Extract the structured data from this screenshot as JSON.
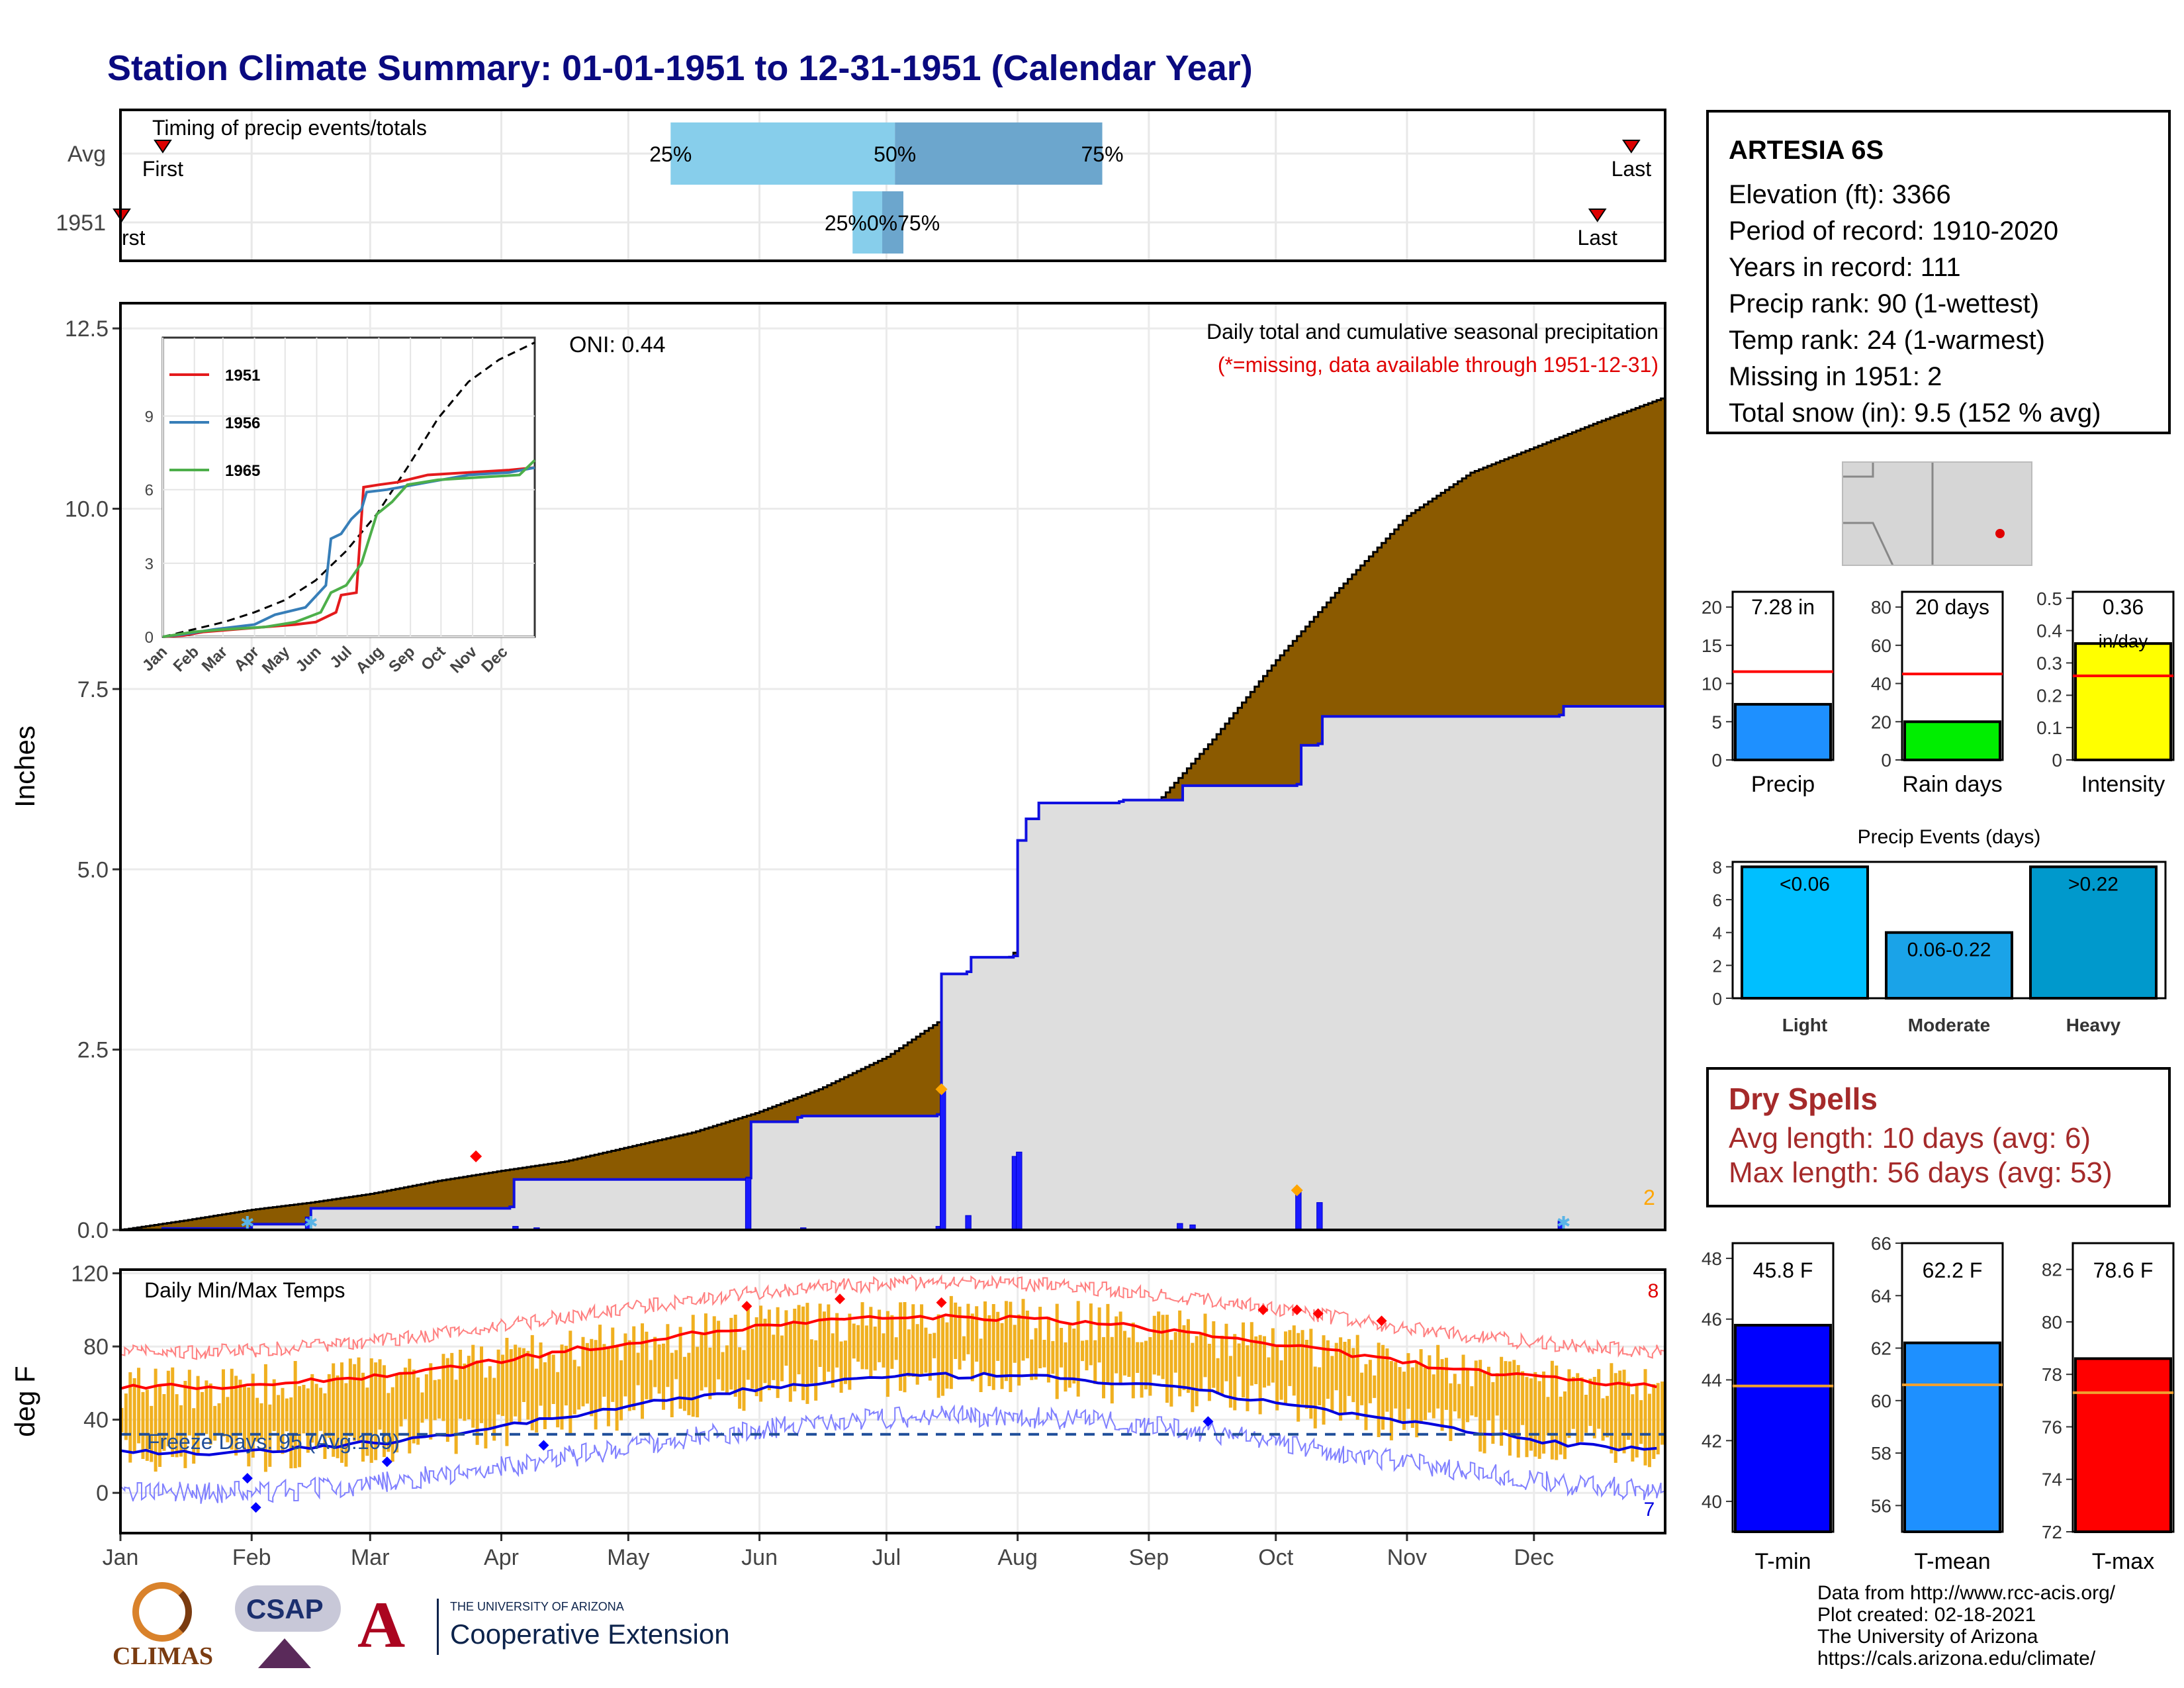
{
  "title": "Station Climate Summary: 01-01-1951 to 12-31-1951 (Calendar Year)",
  "station": {
    "name": "ARTESIA 6S",
    "lines": [
      "Elevation (ft): 3366",
      "Period of record: 1910-2020",
      "Years in record: 111",
      "Precip rank: 90 (1-wettest)",
      "Temp rank: 24 (1-warmest)",
      "Missing in 1951: 2",
      "Total snow (in): 9.5 (152 % avg)"
    ]
  },
  "timing": {
    "title": "Timing of precip events/totals",
    "rows": [
      "Avg",
      "1951"
    ],
    "first_label": "First",
    "first_label_clipped": "rst",
    "last_label": "Last",
    "avg": {
      "first_day": 10,
      "p25": 130,
      "p50": 183,
      "p75": 232,
      "last_day": 357
    },
    "y1951": {
      "first_day": -3,
      "p25": 173,
      "p50": 180,
      "p75": 185,
      "last_day": 349
    },
    "pct_labels": [
      "25%",
      "50%",
      "75%"
    ],
    "pct_labels_1951": "25%0%75%"
  },
  "precip_chart": {
    "ylabel": "Inches",
    "yticks": [
      0.0,
      2.5,
      5.0,
      7.5,
      10.0,
      12.5
    ],
    "ytick_labels": [
      "0.0",
      "2.5",
      "5.0",
      "7.5",
      "10.0",
      "12.5"
    ],
    "legend_title": "Daily total and cumulative seasonal precipitation",
    "legend_note": "(*=missing, data available through 1951-12-31)",
    "oni": "ONI: 0.44",
    "missing_count": "2",
    "avg_cumulative": [
      [
        0,
        0
      ],
      [
        15,
        0.13
      ],
      [
        31,
        0.28
      ],
      [
        45,
        0.38
      ],
      [
        59,
        0.5
      ],
      [
        75,
        0.68
      ],
      [
        90,
        0.82
      ],
      [
        105,
        0.95
      ],
      [
        120,
        1.15
      ],
      [
        135,
        1.35
      ],
      [
        150,
        1.62
      ],
      [
        165,
        1.95
      ],
      [
        181,
        2.4
      ],
      [
        196,
        3.0
      ],
      [
        212,
        3.9
      ],
      [
        227,
        4.85
      ],
      [
        243,
        5.8
      ],
      [
        258,
        6.8
      ],
      [
        273,
        7.9
      ],
      [
        288,
        8.9
      ],
      [
        304,
        9.9
      ],
      [
        319,
        10.5
      ],
      [
        334,
        10.85
      ],
      [
        349,
        11.2
      ],
      [
        365,
        11.55
      ]
    ],
    "y1951_cumulative": [
      [
        0,
        0
      ],
      [
        10,
        0.02
      ],
      [
        31,
        0.08
      ],
      [
        44,
        0.1
      ],
      [
        45,
        0.3
      ],
      [
        92,
        0.32
      ],
      [
        93,
        0.7
      ],
      [
        148,
        0.72
      ],
      [
        149,
        1.5
      ],
      [
        160,
        1.56
      ],
      [
        161,
        1.58
      ],
      [
        193,
        1.6
      ],
      [
        194,
        3.55
      ],
      [
        200,
        3.58
      ],
      [
        201,
        3.78
      ],
      [
        211,
        3.8
      ],
      [
        212,
        5.4
      ],
      [
        214,
        5.7
      ],
      [
        217,
        5.92
      ],
      [
        236,
        5.94
      ],
      [
        237,
        5.96
      ],
      [
        250,
        5.96
      ],
      [
        251,
        6.16
      ],
      [
        278,
        6.18
      ],
      [
        279,
        6.72
      ],
      [
        283,
        6.74
      ],
      [
        284,
        7.12
      ],
      [
        340,
        7.14
      ],
      [
        341,
        7.26
      ],
      [
        365,
        7.26
      ]
    ],
    "daily_bars": [
      [
        44,
        0.18
      ],
      [
        93,
        0.05
      ],
      [
        98,
        0.03
      ],
      [
        148,
        0.72
      ],
      [
        161,
        0.03
      ],
      [
        193,
        0.05
      ],
      [
        194,
        1.95
      ],
      [
        200,
        0.2
      ],
      [
        211,
        1.02
      ],
      [
        212,
        1.08
      ],
      [
        250,
        0.09
      ],
      [
        253,
        0.07
      ],
      [
        278,
        0.53
      ],
      [
        283,
        0.38
      ],
      [
        340,
        0.12
      ]
    ]
  },
  "inset": {
    "series": [
      {
        "name": "1951",
        "color": "#e41a1c",
        "values": [
          [
            0,
            0
          ],
          [
            20,
            0.05
          ],
          [
            40,
            0.2
          ],
          [
            70,
            0.3
          ],
          [
            100,
            0.4
          ],
          [
            130,
            0.5
          ],
          [
            150,
            0.6
          ],
          [
            170,
            1.0
          ],
          [
            175,
            1.7
          ],
          [
            190,
            1.8
          ],
          [
            197,
            6.1
          ],
          [
            212,
            6.2
          ],
          [
            230,
            6.3
          ],
          [
            260,
            6.6
          ],
          [
            300,
            6.7
          ],
          [
            340,
            6.8
          ],
          [
            365,
            6.9
          ]
        ]
      },
      {
        "name": "1956",
        "color": "#377eb8",
        "values": [
          [
            0,
            0
          ],
          [
            20,
            0.1
          ],
          [
            50,
            0.3
          ],
          [
            90,
            0.5
          ],
          [
            110,
            0.9
          ],
          [
            140,
            1.2
          ],
          [
            160,
            2.1
          ],
          [
            165,
            4.0
          ],
          [
            175,
            4.2
          ],
          [
            185,
            4.8
          ],
          [
            195,
            5.2
          ],
          [
            200,
            5.9
          ],
          [
            220,
            6.0
          ],
          [
            260,
            6.3
          ],
          [
            300,
            6.6
          ],
          [
            340,
            6.7
          ],
          [
            365,
            6.9
          ]
        ]
      },
      {
        "name": "1965",
        "color": "#4daf4a",
        "values": [
          [
            0,
            0
          ],
          [
            30,
            0.2
          ],
          [
            60,
            0.3
          ],
          [
            100,
            0.4
          ],
          [
            130,
            0.6
          ],
          [
            155,
            1.0
          ],
          [
            165,
            1.8
          ],
          [
            180,
            2.1
          ],
          [
            195,
            3.0
          ],
          [
            210,
            5.0
          ],
          [
            225,
            5.5
          ],
          [
            240,
            6.2
          ],
          [
            270,
            6.4
          ],
          [
            310,
            6.5
          ],
          [
            350,
            6.6
          ],
          [
            360,
            7.0
          ],
          [
            365,
            7.2
          ]
        ]
      }
    ],
    "avg_line": [
      [
        0,
        0
      ],
      [
        30,
        0.3
      ],
      [
        60,
        0.6
      ],
      [
        90,
        1.0
      ],
      [
        120,
        1.5
      ],
      [
        150,
        2.3
      ],
      [
        180,
        3.5
      ],
      [
        210,
        5.0
      ],
      [
        240,
        6.9
      ],
      [
        270,
        8.9
      ],
      [
        300,
        10.4
      ],
      [
        330,
        11.3
      ],
      [
        365,
        12.0
      ]
    ],
    "yticks": [
      0,
      3,
      6,
      9
    ],
    "xlabels": [
      "Jan",
      "Feb",
      "Mar",
      "Apr",
      "May",
      "Jun",
      "Jul",
      "Aug",
      "Sep",
      "Oct",
      "Nov",
      "Dec"
    ]
  },
  "temp_chart": {
    "ylabel": "deg F",
    "title": "Daily Min/Max Temps",
    "freeze_text": "Freeze Days: 95 (Avg:109)",
    "count_hi": "8",
    "count_lo": "7",
    "yticks": [
      0,
      40,
      80,
      120
    ],
    "freeze_line": 32,
    "avg_max_amp": {
      "mean": 77,
      "amp": 19,
      "peak_day": 195
    },
    "avg_min_amp": {
      "mean": 43,
      "amp": 21,
      "peak_day": 200
    }
  },
  "months": [
    "Jan",
    "Feb",
    "Mar",
    "Apr",
    "May",
    "Jun",
    "Jul",
    "Aug",
    "Sep",
    "Oct",
    "Nov",
    "Dec"
  ],
  "month_starts": [
    0,
    31,
    59,
    90,
    120,
    151,
    181,
    212,
    243,
    273,
    304,
    334
  ],
  "bar_panels": [
    {
      "label": "Precip",
      "value_text": "7.28 in",
      "value": 7.28,
      "avg": 11.55,
      "ymax": 22,
      "yticks": [
        0,
        5,
        10,
        15,
        20
      ],
      "color": "#1e90ff"
    },
    {
      "label": "Rain days",
      "value_text": "20 days",
      "value": 20,
      "avg": 45,
      "ymax": 88,
      "yticks": [
        0,
        20,
        40,
        60,
        80
      ],
      "color": "#00ee00"
    },
    {
      "label": "Intensity",
      "value_text": "0.36",
      "value_text2": "in/day",
      "value": 0.36,
      "avg": 0.26,
      "ymax": 0.52,
      "yticks": [
        0.0,
        0.1,
        0.2,
        0.3,
        0.4,
        0.5
      ],
      "color": "#ffff00"
    }
  ],
  "events": {
    "title": "Precip Events (days)",
    "categories": [
      "Light",
      "Moderate",
      "Heavy"
    ],
    "labels": [
      "<0.06",
      "0.06-0.22",
      ">0.22"
    ],
    "values": [
      8,
      4,
      8
    ],
    "colors": [
      "#00bfff",
      "#1aa3e8",
      "#0099cc"
    ],
    "yticks": [
      0,
      2,
      4,
      6,
      8
    ]
  },
  "dry_spells": {
    "title": "Dry Spells",
    "avg": "Avg length: 10 days (avg: 6)",
    "max": "Max length: 56 days (avg: 53)"
  },
  "temp_panels": [
    {
      "label": "T-min",
      "value_text": "45.8 F",
      "value": 45.8,
      "avg": 43.8,
      "ymin": 39,
      "ymax": 48.5,
      "yticks": [
        40,
        42,
        44,
        46,
        48
      ],
      "color": "#0000ff"
    },
    {
      "label": "T-mean",
      "value_text": "62.2 F",
      "value": 62.2,
      "avg": 60.6,
      "ymin": 55,
      "ymax": 66,
      "yticks": [
        56,
        58,
        60,
        62,
        64,
        66
      ],
      "color": "#1e90ff"
    },
    {
      "label": "T-max",
      "value_text": "78.6 F",
      "value": 78.6,
      "avg": 77.3,
      "ymin": 72,
      "ymax": 83,
      "yticks": [
        72,
        74,
        76,
        78,
        80,
        82
      ],
      "color": "#ff0000"
    }
  ],
  "footer": [
    "Data from http://www.rcc-acis.org/",
    "Plot created: 02-18-2021",
    "The University of Arizona",
    "https://cals.arizona.edu/climate/"
  ],
  "logos": {
    "climas": "CLIMAS",
    "csap": "CSAP",
    "ua_line1": "THE UNIVERSITY OF ARIZONA",
    "ua_line2": "Cooperative Extension"
  }
}
